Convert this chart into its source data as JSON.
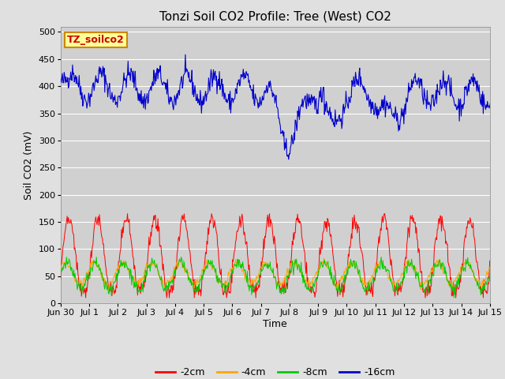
{
  "title": "Tonzi Soil CO2 Profile: Tree (West) CO2",
  "ylabel": "Soil CO2 (mV)",
  "xlabel": "Time",
  "annotation": "TZ_soilco2",
  "ylim": [
    0,
    510
  ],
  "yticks": [
    0,
    50,
    100,
    150,
    200,
    250,
    300,
    350,
    400,
    450,
    500
  ],
  "x_tick_labels": [
    "Jun 30",
    "Jul 1",
    "Jul 2",
    "Jul 3",
    "Jul 4",
    "Jul 5",
    "Jul 6",
    "Jul 7",
    "Jul 8",
    "Jul 9",
    "Jul 10",
    "Jul 11",
    "Jul 12",
    "Jul 13",
    "Jul 14",
    "Jul 15"
  ],
  "colors": {
    "2cm": "#ff0000",
    "4cm": "#ffa500",
    "8cm": "#00cc00",
    "16cm": "#0000cc"
  },
  "legend_labels": [
    "-2cm",
    "-4cm",
    "-8cm",
    "-16cm"
  ],
  "background_color": "#e0e0e0",
  "plot_bg_color": "#d0d0d0",
  "annotation_bg": "#ffff99",
  "annotation_border": "#cc8800",
  "title_fontsize": 11,
  "axis_fontsize": 9,
  "tick_fontsize": 8,
  "legend_fontsize": 9
}
